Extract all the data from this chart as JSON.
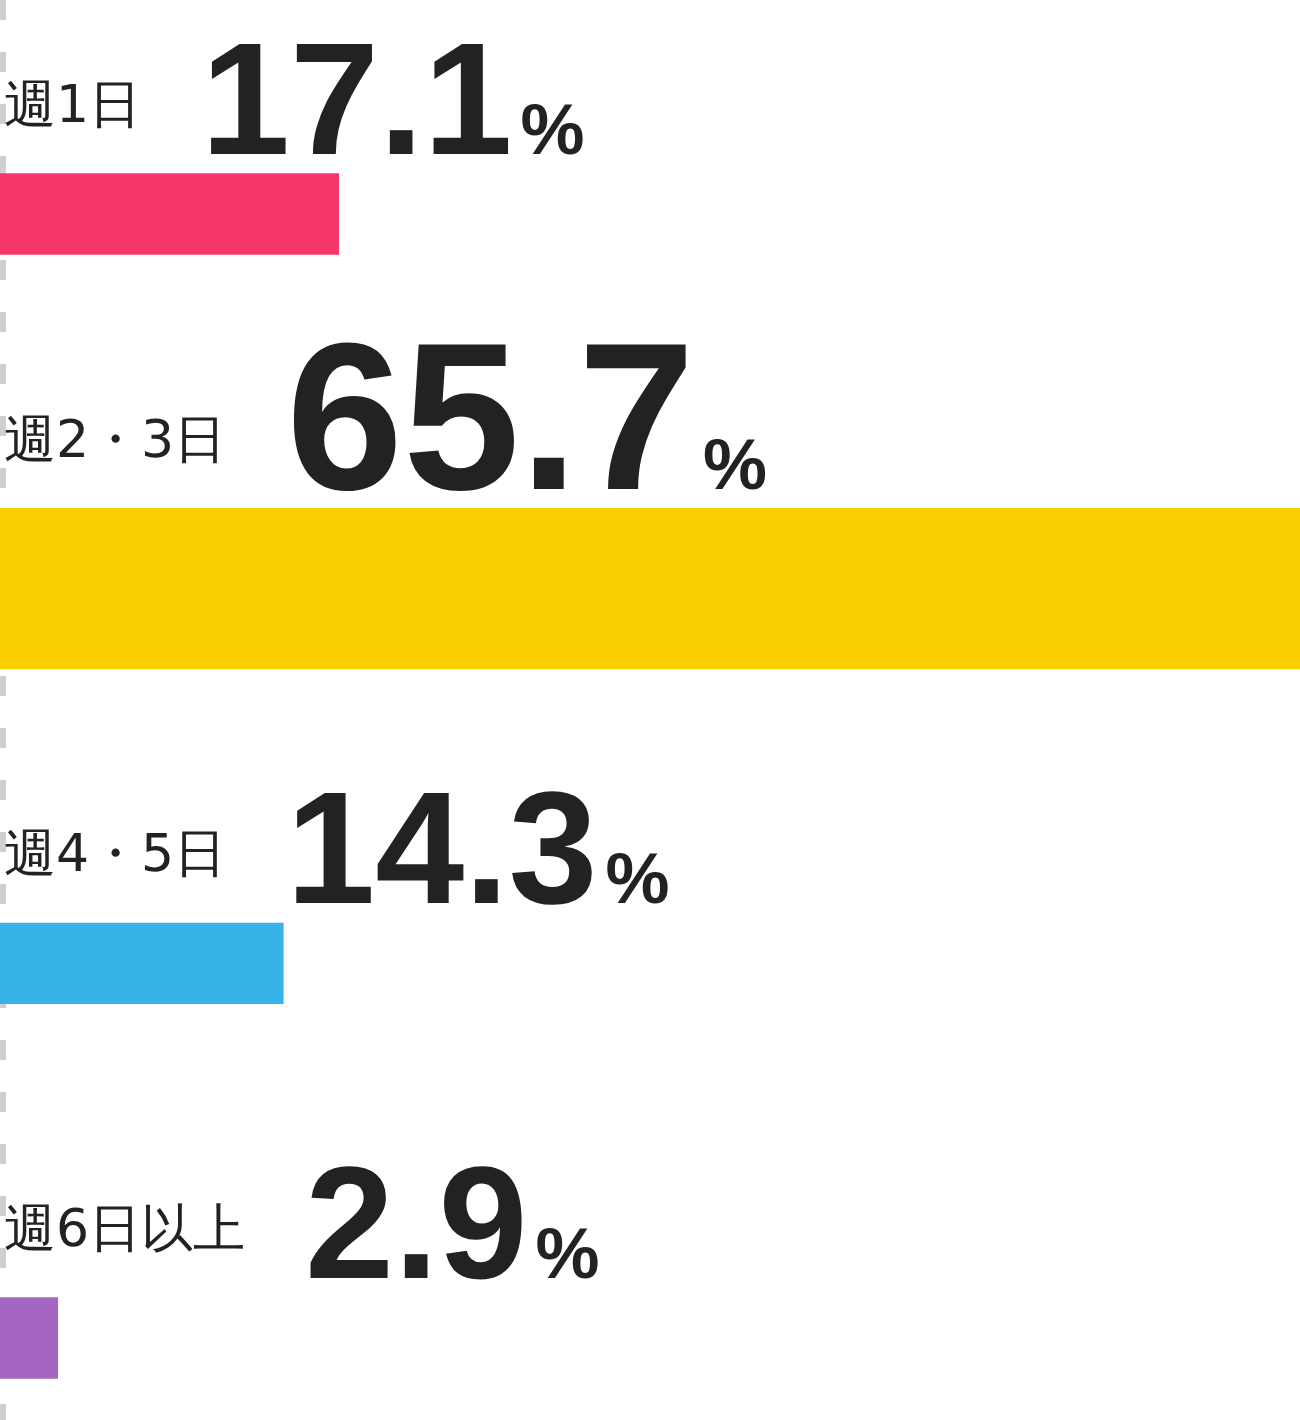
{
  "chart_data": {
    "type": "bar",
    "orientation": "horizontal",
    "categories": [
      "週1日",
      "週2・3日",
      "週4・5日",
      "週6日以上"
    ],
    "values": [
      17.1,
      65.7,
      14.3,
      2.9
    ],
    "colors": [
      "#f5376b",
      "#fbce00",
      "#36b3e8",
      "#a566c1"
    ],
    "value_labels": [
      "17.1%",
      "65.7%",
      "14.3%",
      "2.9%"
    ],
    "tick_labels": false
  }
}
